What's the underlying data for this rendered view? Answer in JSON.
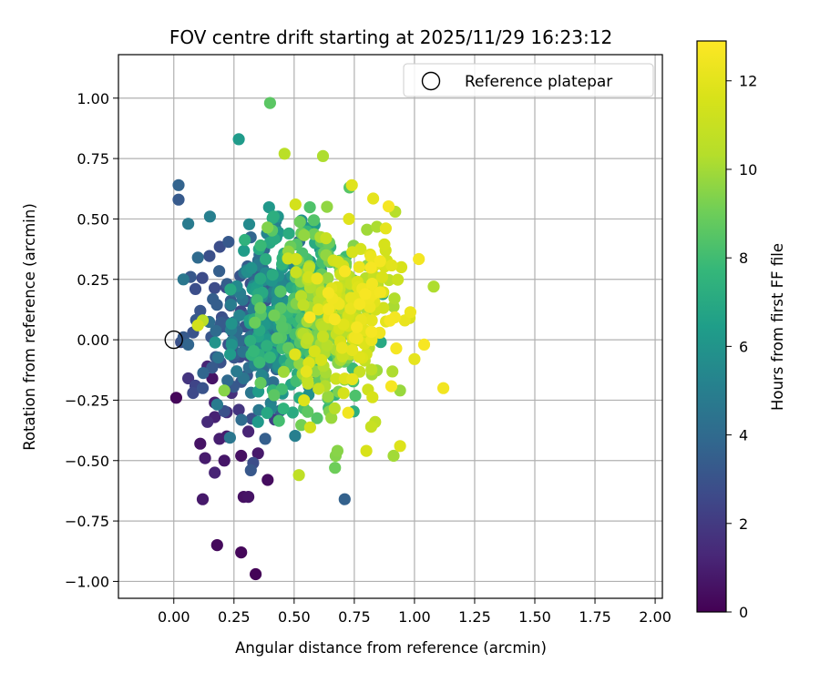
{
  "chart_data": {
    "type": "scatter",
    "title": "FOV centre drift starting at 2025/11/29 16:23:12",
    "xlabel": "Angular distance from reference (arcmin)",
    "ylabel": "Rotation from reference (arcmin)",
    "xlim": [
      -0.23,
      2.03
    ],
    "ylim": [
      -1.07,
      1.18
    ],
    "xticks": [
      0.0,
      0.25,
      0.5,
      0.75,
      1.0,
      1.25,
      1.5,
      1.75,
      2.0
    ],
    "xtick_labels": [
      "0.00",
      "0.25",
      "0.50",
      "0.75",
      "1.00",
      "1.25",
      "1.50",
      "1.75",
      "2.00"
    ],
    "yticks": [
      -1.0,
      -0.75,
      -0.5,
      -0.25,
      0.0,
      0.25,
      0.5,
      0.75,
      1.0
    ],
    "ytick_labels": [
      "−1.00",
      "−0.75",
      "−0.50",
      "−0.25",
      "0.00",
      "0.25",
      "0.50",
      "0.75",
      "1.00"
    ],
    "grid": true,
    "legend": {
      "position": "top-right",
      "entries": [
        {
          "label": "Reference platepar",
          "marker": "open-circle",
          "x": 0.0,
          "y": 0.0
        }
      ]
    },
    "colorbar": {
      "label": "Hours from first FF file",
      "colormap": "viridis",
      "range": [
        0,
        12.9
      ],
      "ticks": [
        0,
        2,
        4,
        6,
        8,
        10,
        12
      ],
      "tick_labels": [
        "0",
        "2",
        "4",
        "6",
        "8",
        "10",
        "12"
      ]
    },
    "points": [
      {
        "x": 0.34,
        "y": -0.97,
        "h": 0.1
      },
      {
        "x": 0.28,
        "y": -0.88,
        "h": 0.2
      },
      {
        "x": 0.18,
        "y": -0.85,
        "h": 0.3
      },
      {
        "x": 0.29,
        "y": -0.65,
        "h": 0.5
      },
      {
        "x": 0.31,
        "y": -0.65,
        "h": 0.6
      },
      {
        "x": 0.12,
        "y": -0.66,
        "h": 0.8
      },
      {
        "x": 0.39,
        "y": -0.58,
        "h": 0.4
      },
      {
        "x": 0.17,
        "y": -0.55,
        "h": 1.2
      },
      {
        "x": 0.13,
        "y": -0.49,
        "h": 0.9
      },
      {
        "x": 0.21,
        "y": -0.5,
        "h": 0.7
      },
      {
        "x": 0.28,
        "y": -0.48,
        "h": 0.5
      },
      {
        "x": 0.35,
        "y": -0.47,
        "h": 0.8
      },
      {
        "x": 0.11,
        "y": -0.43,
        "h": 0.6
      },
      {
        "x": 0.19,
        "y": -0.41,
        "h": 1.0
      },
      {
        "x": 0.22,
        "y": -0.4,
        "h": 0.9
      },
      {
        "x": 0.14,
        "y": -0.34,
        "h": 1.4
      },
      {
        "x": 0.17,
        "y": -0.32,
        "h": 1.1
      },
      {
        "x": 0.31,
        "y": -0.38,
        "h": 1.2
      },
      {
        "x": 0.33,
        "y": -0.51,
        "h": 2.8
      },
      {
        "x": 0.32,
        "y": -0.54,
        "h": 3.2
      },
      {
        "x": 0.38,
        "y": -0.41,
        "h": 3.5
      },
      {
        "x": 0.27,
        "y": -0.29,
        "h": 1.8
      },
      {
        "x": 0.22,
        "y": -0.3,
        "h": 1.5
      },
      {
        "x": 0.42,
        "y": -0.33,
        "h": 2.2
      },
      {
        "x": 0.01,
        "y": -0.24,
        "h": 0.2
      },
      {
        "x": 0.06,
        "y": -0.16,
        "h": 1.8
      },
      {
        "x": 0.09,
        "y": -0.19,
        "h": 2.4
      },
      {
        "x": 0.08,
        "y": -0.22,
        "h": 2.6
      },
      {
        "x": 0.17,
        "y": -0.26,
        "h": 1.0
      },
      {
        "x": 0.16,
        "y": -0.16,
        "h": 0.6
      },
      {
        "x": 0.24,
        "y": -0.22,
        "h": 1.6
      },
      {
        "x": 0.14,
        "y": -0.11,
        "h": 1.2
      },
      {
        "x": 0.12,
        "y": -0.2,
        "h": 3.0
      },
      {
        "x": 0.71,
        "y": -0.66,
        "h": 3.6
      },
      {
        "x": 0.29,
        "y": -0.16,
        "h": 4.5
      },
      {
        "x": 0.35,
        "y": -0.34,
        "h": 6.2
      },
      {
        "x": 0.03,
        "y": -0.01,
        "h": 2.9
      },
      {
        "x": 0.04,
        "y": 0.01,
        "h": 3.3
      },
      {
        "x": 0.06,
        "y": -0.02,
        "h": 3.8
      },
      {
        "x": 0.08,
        "y": 0.03,
        "h": 3.0
      },
      {
        "x": 0.11,
        "y": 0.12,
        "h": 3.1
      },
      {
        "x": 0.02,
        "y": 0.58,
        "h": 3.3
      },
      {
        "x": 0.02,
        "y": 0.64,
        "h": 3.7
      },
      {
        "x": 0.04,
        "y": 0.25,
        "h": 4.6
      },
      {
        "x": 0.07,
        "y": 0.26,
        "h": 3.2
      },
      {
        "x": 0.09,
        "y": 0.21,
        "h": 2.8
      },
      {
        "x": 0.06,
        "y": 0.48,
        "h": 4.8
      },
      {
        "x": 0.15,
        "y": 0.51,
        "h": 5.0
      },
      {
        "x": 0.1,
        "y": 0.34,
        "h": 4.0
      },
      {
        "x": 0.12,
        "y": 0.08,
        "h": 10.5
      },
      {
        "x": 0.1,
        "y": 0.06,
        "h": 11.4
      },
      {
        "x": 0.21,
        "y": -0.21,
        "h": 9.5
      },
      {
        "x": 0.27,
        "y": 0.83,
        "h": 6.3
      },
      {
        "x": 0.4,
        "y": 0.98,
        "h": 8.6
      },
      {
        "x": 0.46,
        "y": 0.77,
        "h": 10.5
      },
      {
        "x": 0.62,
        "y": 0.76,
        "h": 10.2
      },
      {
        "x": 0.74,
        "y": 0.64,
        "h": 11.9
      },
      {
        "x": 0.73,
        "y": 0.63,
        "h": 8.5
      },
      {
        "x": 0.92,
        "y": 0.53,
        "h": 10.4
      },
      {
        "x": 1.08,
        "y": 0.22,
        "h": 10.2
      },
      {
        "x": 1.12,
        "y": -0.2,
        "h": 12.5
      },
      {
        "x": 1.04,
        "y": -0.02,
        "h": 12.7
      },
      {
        "x": 1.0,
        "y": -0.08,
        "h": 12.1
      },
      {
        "x": 0.94,
        "y": -0.44,
        "h": 11.8
      },
      {
        "x": 0.8,
        "y": -0.46,
        "h": 11.6
      },
      {
        "x": 0.68,
        "y": -0.46,
        "h": 9.5
      },
      {
        "x": 0.67,
        "y": -0.53,
        "h": 9.0
      },
      {
        "x": 0.52,
        "y": -0.56,
        "h": 10.7
      },
      {
        "x": 0.82,
        "y": -0.36,
        "h": 11.0
      },
      {
        "x": 0.94,
        "y": -0.21,
        "h": 9.8
      },
      {
        "x": 0.98,
        "y": 0.09,
        "h": 11.7
      },
      {
        "x": 0.96,
        "y": 0.08,
        "h": 12.2
      },
      {
        "x": 0.88,
        "y": 0.37,
        "h": 11.4
      },
      {
        "x": 0.86,
        "y": -0.01,
        "h": 7.0
      }
    ],
    "cloud": {
      "count": 760,
      "center": {
        "x": 0.5,
        "y": 0.12
      },
      "note": "Dense cluster of timestamped solutions, drifting to larger angular distance with later hours"
    }
  }
}
